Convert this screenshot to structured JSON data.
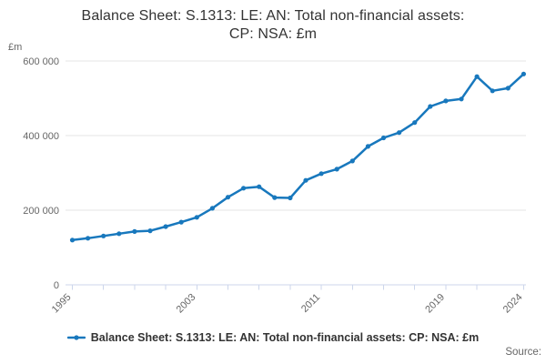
{
  "header": {
    "title_lines": [
      "Balance Sheet: S.1313: LE: AN: Total non-financial assets:",
      "CP: NSA: £m"
    ]
  },
  "y_axis": {
    "unit_label": "£m"
  },
  "legend": {
    "label": "Balance Sheet: S.1313: LE: AN: Total non-financial assets: CP: NSA: £m"
  },
  "footer": {
    "source_label": "Source:"
  },
  "colors": {
    "series": "#1878bd",
    "grid": "#e6e6e6",
    "axis": "#ccd6eb",
    "muted_text": "#666666",
    "title_text": "#333333"
  },
  "chart_data": {
    "type": "line",
    "title": "Balance Sheet: S.1313: LE: AN: Total non-financial assets: CP: NSA: £m",
    "xlabel": "",
    "ylabel": "£m",
    "ylim": [
      0,
      600000
    ],
    "grid": true,
    "legend_position": "bottom",
    "x": [
      1995,
      1996,
      1997,
      1998,
      1999,
      2000,
      2001,
      2002,
      2003,
      2004,
      2005,
      2006,
      2007,
      2008,
      2009,
      2010,
      2011,
      2012,
      2013,
      2014,
      2015,
      2016,
      2017,
      2018,
      2019,
      2020,
      2021,
      2022,
      2023,
      2024
    ],
    "series": [
      {
        "name": "Balance Sheet: S.1313: LE: AN: Total non-financial assets: CP: NSA: £m",
        "color": "#1878bd",
        "values": [
          120000,
          125000,
          131000,
          137000,
          143000,
          145000,
          156000,
          168000,
          181000,
          205000,
          235000,
          259000,
          263000,
          234000,
          233000,
          280000,
          298000,
          310000,
          332000,
          371000,
          394000,
          408000,
          435000,
          478000,
          493000,
          498000,
          558000,
          520000,
          527000,
          565000
        ]
      }
    ],
    "x_ticks": [
      1995,
      1997,
      1999,
      2001,
      2003,
      2005,
      2007,
      2009,
      2011,
      2013,
      2015,
      2017,
      2019,
      2021,
      2024
    ],
    "x_labeled_ticks": [
      1995,
      2003,
      2011,
      2019,
      2024
    ],
    "y_ticks": [
      0,
      200000,
      400000,
      600000
    ],
    "y_tick_labels": [
      "0",
      "200 000",
      "400 000",
      "600 000"
    ]
  }
}
